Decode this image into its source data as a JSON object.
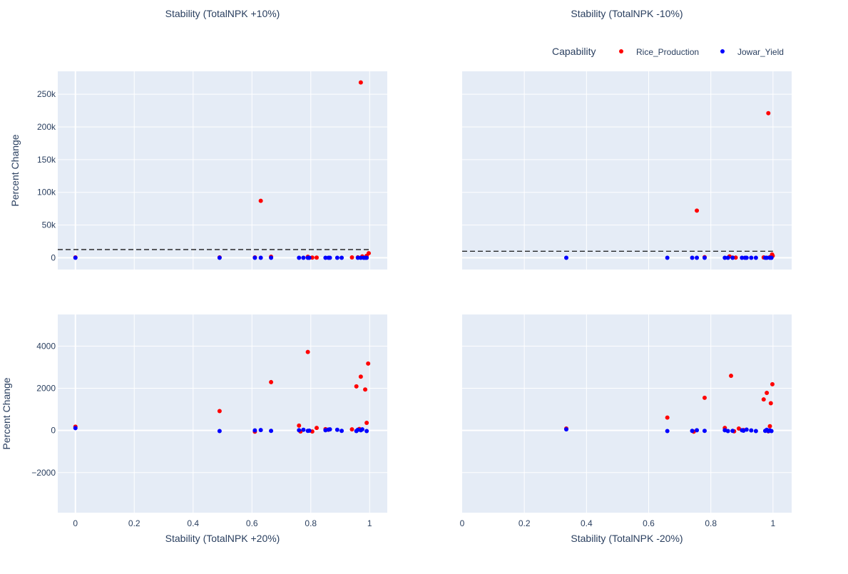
{
  "chart_data": {
    "type": "scatter",
    "legend": {
      "title": "Capability",
      "placement": "top-right",
      "series": [
        {
          "name": "Rice_Production",
          "color": "#ff0000"
        },
        {
          "name": "Jowar_Yield",
          "color": "#0000ff"
        }
      ]
    },
    "panels": [
      {
        "title": "Stability (TotalNPK +10%)",
        "xlabel": "",
        "ylabel": "Percent Change",
        "xlim": [
          -0.06,
          1.06
        ],
        "ylim": [
          -18000,
          285000
        ],
        "x_ticks": [
          0,
          0.2,
          0.4,
          0.6,
          0.8,
          1
        ],
        "x_tick_labels": [],
        "y_ticks": [
          0,
          50000,
          100000,
          150000,
          200000,
          250000
        ],
        "y_tick_labels": [
          "0",
          "50k",
          "100k",
          "150k",
          "200k",
          "250k"
        ],
        "reference_line": {
          "style": "dashed",
          "color": "#000000",
          "y": 12500,
          "x": [
            -0.06,
            1.0
          ]
        },
        "series": [
          {
            "name": "Rice_Production",
            "color": "#ff0000",
            "points": [
              [
                0.0,
                500
              ],
              [
                0.49,
                500
              ],
              [
                0.61,
                500
              ],
              [
                0.63,
                87000
              ],
              [
                0.665,
                1500
              ],
              [
                0.79,
                1500
              ],
              [
                0.805,
                300
              ],
              [
                0.82,
                300
              ],
              [
                0.94,
                500
              ],
              [
                0.96,
                600
              ],
              [
                0.97,
                268000
              ],
              [
                0.975,
                2000
              ],
              [
                0.99,
                3000
              ],
              [
                0.997,
                7000
              ]
            ]
          },
          {
            "name": "Jowar_Yield",
            "color": "#0000ff",
            "points": [
              [
                0.0,
                0
              ],
              [
                0.49,
                0
              ],
              [
                0.61,
                0
              ],
              [
                0.63,
                0
              ],
              [
                0.665,
                0
              ],
              [
                0.76,
                0
              ],
              [
                0.775,
                0
              ],
              [
                0.79,
                0
              ],
              [
                0.795,
                0
              ],
              [
                0.85,
                0
              ],
              [
                0.86,
                0
              ],
              [
                0.865,
                0
              ],
              [
                0.89,
                0
              ],
              [
                0.905,
                0
              ],
              [
                0.96,
                0
              ],
              [
                0.97,
                0
              ],
              [
                0.98,
                0
              ],
              [
                0.985,
                0
              ],
              [
                0.99,
                0
              ]
            ]
          }
        ]
      },
      {
        "title": "Stability (TotalNPK -10%)",
        "xlabel": "",
        "ylabel": "",
        "xlim": [
          0,
          1.06
        ],
        "ylim": [
          -18000,
          285000
        ],
        "x_ticks": [
          0,
          0.2,
          0.4,
          0.6,
          0.8,
          1
        ],
        "x_tick_labels": [],
        "y_ticks": [
          0,
          50000,
          100000,
          150000,
          200000,
          250000
        ],
        "y_tick_labels": [],
        "reference_line": {
          "style": "dashed",
          "color": "#000000",
          "y": 10000,
          "x": [
            0,
            1.0
          ]
        },
        "series": [
          {
            "name": "Rice_Production",
            "color": "#ff0000",
            "points": [
              [
                0.755,
                72000
              ],
              [
                0.78,
                1000
              ],
              [
                0.86,
                2000
              ],
              [
                0.87,
                300
              ],
              [
                0.88,
                300
              ],
              [
                0.97,
                500
              ],
              [
                0.985,
                221000
              ],
              [
                0.99,
                1000
              ],
              [
                0.997,
                5000
              ],
              [
                0.999,
                3000
              ]
            ]
          },
          {
            "name": "Jowar_Yield",
            "color": "#0000ff",
            "points": [
              [
                0.335,
                0
              ],
              [
                0.66,
                0
              ],
              [
                0.74,
                0
              ],
              [
                0.755,
                0
              ],
              [
                0.78,
                0
              ],
              [
                0.845,
                0
              ],
              [
                0.855,
                0
              ],
              [
                0.87,
                0
              ],
              [
                0.9,
                0
              ],
              [
                0.91,
                0
              ],
              [
                0.915,
                0
              ],
              [
                0.93,
                0
              ],
              [
                0.945,
                0
              ],
              [
                0.975,
                0
              ],
              [
                0.98,
                0
              ],
              [
                0.99,
                0
              ],
              [
                0.995,
                0
              ]
            ]
          }
        ]
      },
      {
        "title": "",
        "xlabel": "Stability (TotalNPK +20%)",
        "ylabel": "Percent Change",
        "xlim": [
          -0.06,
          1.06
        ],
        "ylim": [
          -3900,
          5500
        ],
        "x_ticks": [
          0,
          0.2,
          0.4,
          0.6,
          0.8,
          1
        ],
        "x_tick_labels": [
          "0",
          "0.2",
          "0.4",
          "0.6",
          "0.8",
          "1"
        ],
        "y_ticks": [
          -2000,
          0,
          2000,
          4000
        ],
        "y_tick_labels": [
          "−2000",
          "0",
          "2000",
          "4000"
        ],
        "series": [
          {
            "name": "Rice_Production",
            "color": "#ff0000",
            "points": [
              [
                0.0,
                180
              ],
              [
                0.49,
                920
              ],
              [
                0.61,
                -60
              ],
              [
                0.665,
                2290
              ],
              [
                0.76,
                230
              ],
              [
                0.765,
                -50
              ],
              [
                0.79,
                3720
              ],
              [
                0.805,
                -50
              ],
              [
                0.82,
                120
              ],
              [
                0.85,
                60
              ],
              [
                0.86,
                30
              ],
              [
                0.94,
                50
              ],
              [
                0.955,
                2090
              ],
              [
                0.965,
                70
              ],
              [
                0.97,
                2550
              ],
              [
                0.985,
                1940
              ],
              [
                0.99,
                360
              ],
              [
                0.995,
                3170
              ]
            ]
          },
          {
            "name": "Jowar_Yield",
            "color": "#0000ff",
            "points": [
              [
                0.0,
                110
              ],
              [
                0.49,
                -30
              ],
              [
                0.61,
                0
              ],
              [
                0.63,
                20
              ],
              [
                0.665,
                -20
              ],
              [
                0.76,
                10
              ],
              [
                0.775,
                30
              ],
              [
                0.79,
                -20
              ],
              [
                0.795,
                -10
              ],
              [
                0.85,
                10
              ],
              [
                0.86,
                40
              ],
              [
                0.865,
                50
              ],
              [
                0.89,
                30
              ],
              [
                0.905,
                -20
              ],
              [
                0.955,
                -30
              ],
              [
                0.96,
                30
              ],
              [
                0.97,
                10
              ],
              [
                0.975,
                50
              ],
              [
                0.99,
                -30
              ]
            ]
          }
        ]
      },
      {
        "title": "",
        "xlabel": "Stability (TotalNPK -20%)",
        "ylabel": "",
        "xlim": [
          0,
          1.06
        ],
        "ylim": [
          -3900,
          5500
        ],
        "x_ticks": [
          0,
          0.2,
          0.4,
          0.6,
          0.8,
          1
        ],
        "x_tick_labels": [
          "0",
          "0.2",
          "0.4",
          "0.6",
          "0.8",
          "1"
        ],
        "y_ticks": [
          -2000,
          0,
          2000,
          4000
        ],
        "y_tick_labels": [],
        "series": [
          {
            "name": "Rice_Production",
            "color": "#ff0000",
            "points": [
              [
                0.335,
                90
              ],
              [
                0.66,
                610
              ],
              [
                0.745,
                -60
              ],
              [
                0.78,
                1550
              ],
              [
                0.845,
                120
              ],
              [
                0.865,
                2590
              ],
              [
                0.875,
                -40
              ],
              [
                0.89,
                90
              ],
              [
                0.905,
                20
              ],
              [
                0.97,
                1470
              ],
              [
                0.98,
                1780
              ],
              [
                0.985,
                -40
              ],
              [
                0.99,
                200
              ],
              [
                0.993,
                1290
              ],
              [
                0.998,
                2190
              ]
            ]
          },
          {
            "name": "Jowar_Yield",
            "color": "#0000ff",
            "points": [
              [
                0.335,
                50
              ],
              [
                0.66,
                -30
              ],
              [
                0.74,
                -20
              ],
              [
                0.755,
                10
              ],
              [
                0.78,
                -20
              ],
              [
                0.845,
                10
              ],
              [
                0.855,
                -30
              ],
              [
                0.87,
                -20
              ],
              [
                0.9,
                10
              ],
              [
                0.905,
                -10
              ],
              [
                0.915,
                40
              ],
              [
                0.93,
                0
              ],
              [
                0.945,
                -30
              ],
              [
                0.975,
                -20
              ],
              [
                0.98,
                30
              ],
              [
                0.985,
                -30
              ],
              [
                0.99,
                0
              ],
              [
                0.995,
                -30
              ]
            ]
          }
        ]
      }
    ]
  }
}
